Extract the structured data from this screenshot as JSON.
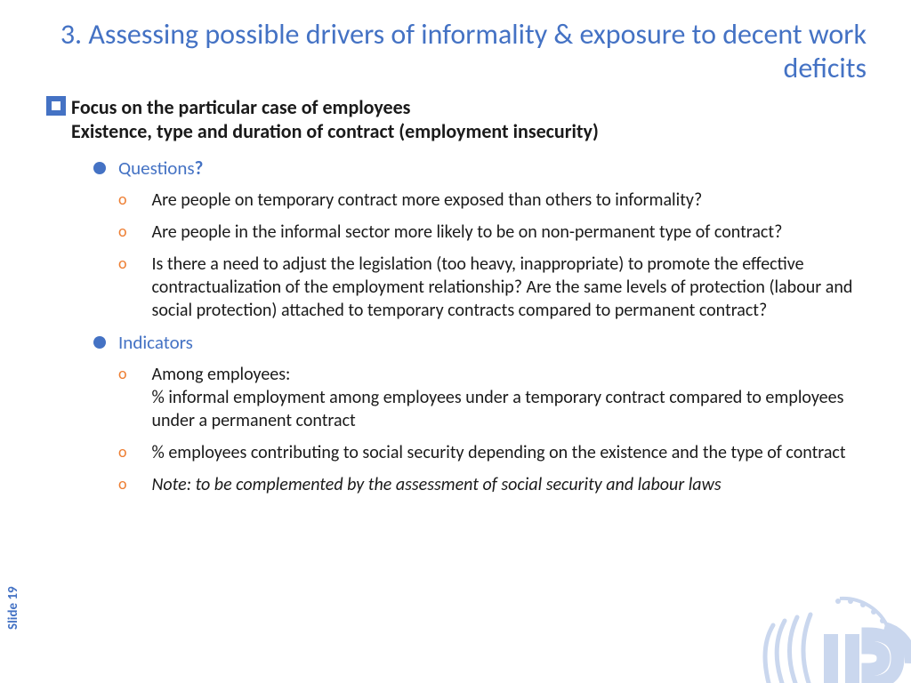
{
  "colors": {
    "accent_blue": "#4472c4",
    "accent_orange": "#ed7d31",
    "text_dark": "#1a1a1a",
    "background": "#ffffff"
  },
  "typography": {
    "title_fontsize": 32,
    "heading_fontsize": 22,
    "label_fontsize": 21,
    "body_fontsize": 20,
    "slidenum_fontsize": 15,
    "font_family": "Calibri"
  },
  "title": "3. Assessing possible drivers of informality & exposure to decent work deficits",
  "main_heading_line1": "Focus on the particular case of employees",
  "main_heading_line2": "Existence, type and duration of contract (employment insecurity)",
  "sections": {
    "questions": {
      "label": "Questions",
      "label_suffix": "?",
      "items": [
        "Are people on temporary contract more exposed than others to informality?",
        "Are people in the informal sector more likely to be on non-permanent type of contract?",
        "Is there a need to adjust the legislation (too heavy, inappropriate) to promote the effective contractualization of the employment relationship? Are the same levels of protection (labour and social protection) attached to temporary contracts compared to permanent contract?"
      ]
    },
    "indicators": {
      "label": "Indicators",
      "items": [
        "Among employees:\n% informal employment among employees under a temporary contract compared to employees under a permanent contract",
        "% employees contributing to social security depending on the existence and the type of contract",
        "Note:  to be complemented by the assessment of social security and labour laws"
      ],
      "italic_index": 2
    }
  },
  "slide_number": "Slide 19"
}
